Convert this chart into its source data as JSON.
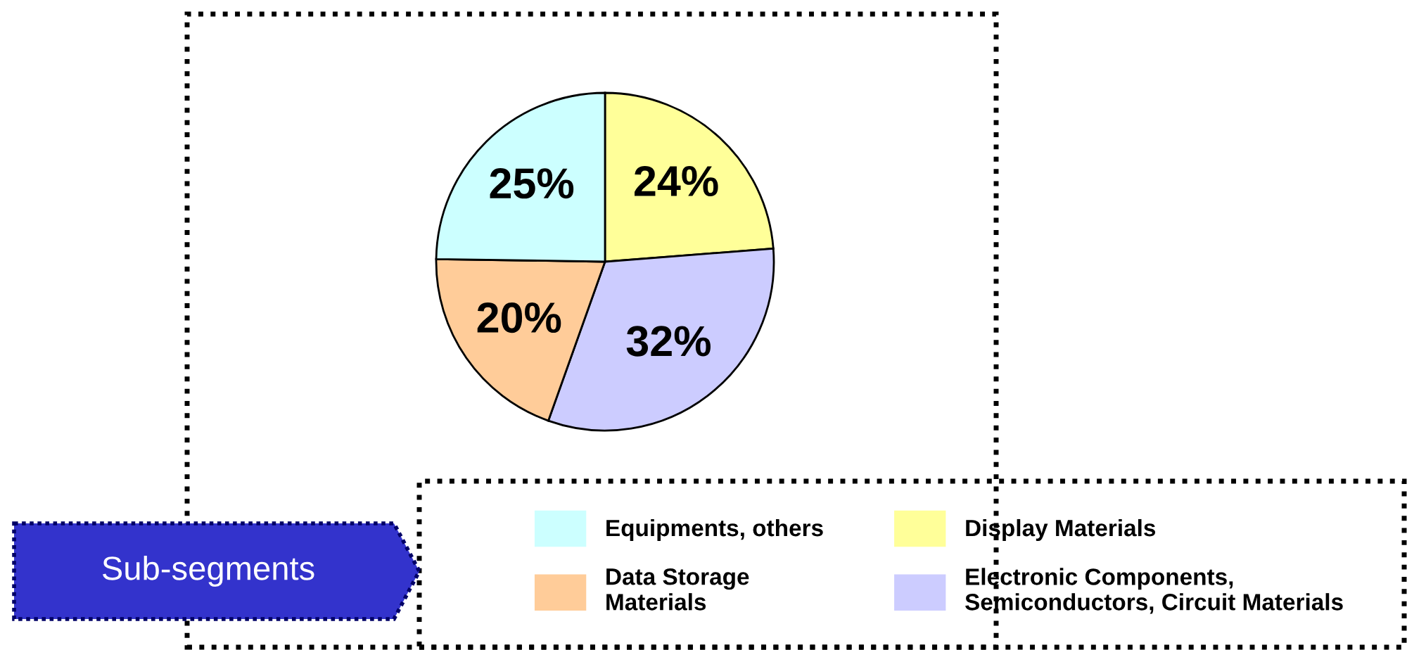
{
  "chart_data": {
    "type": "pie",
    "categories": [
      "Display Materials",
      "Electronic Components,\nSemiconductors, Circuit Materials",
      "Data Storage\nMaterials",
      "Equipments, others"
    ],
    "values": [
      24,
      32,
      20,
      25
    ],
    "value_labels": [
      "24%",
      "32%",
      "20%",
      "25%"
    ],
    "colors": [
      "#ffff99",
      "#ccccff",
      "#ffcc99",
      "#ccffff"
    ],
    "legend": "bottom",
    "annotations": [
      "Sub-segments"
    ]
  }
}
